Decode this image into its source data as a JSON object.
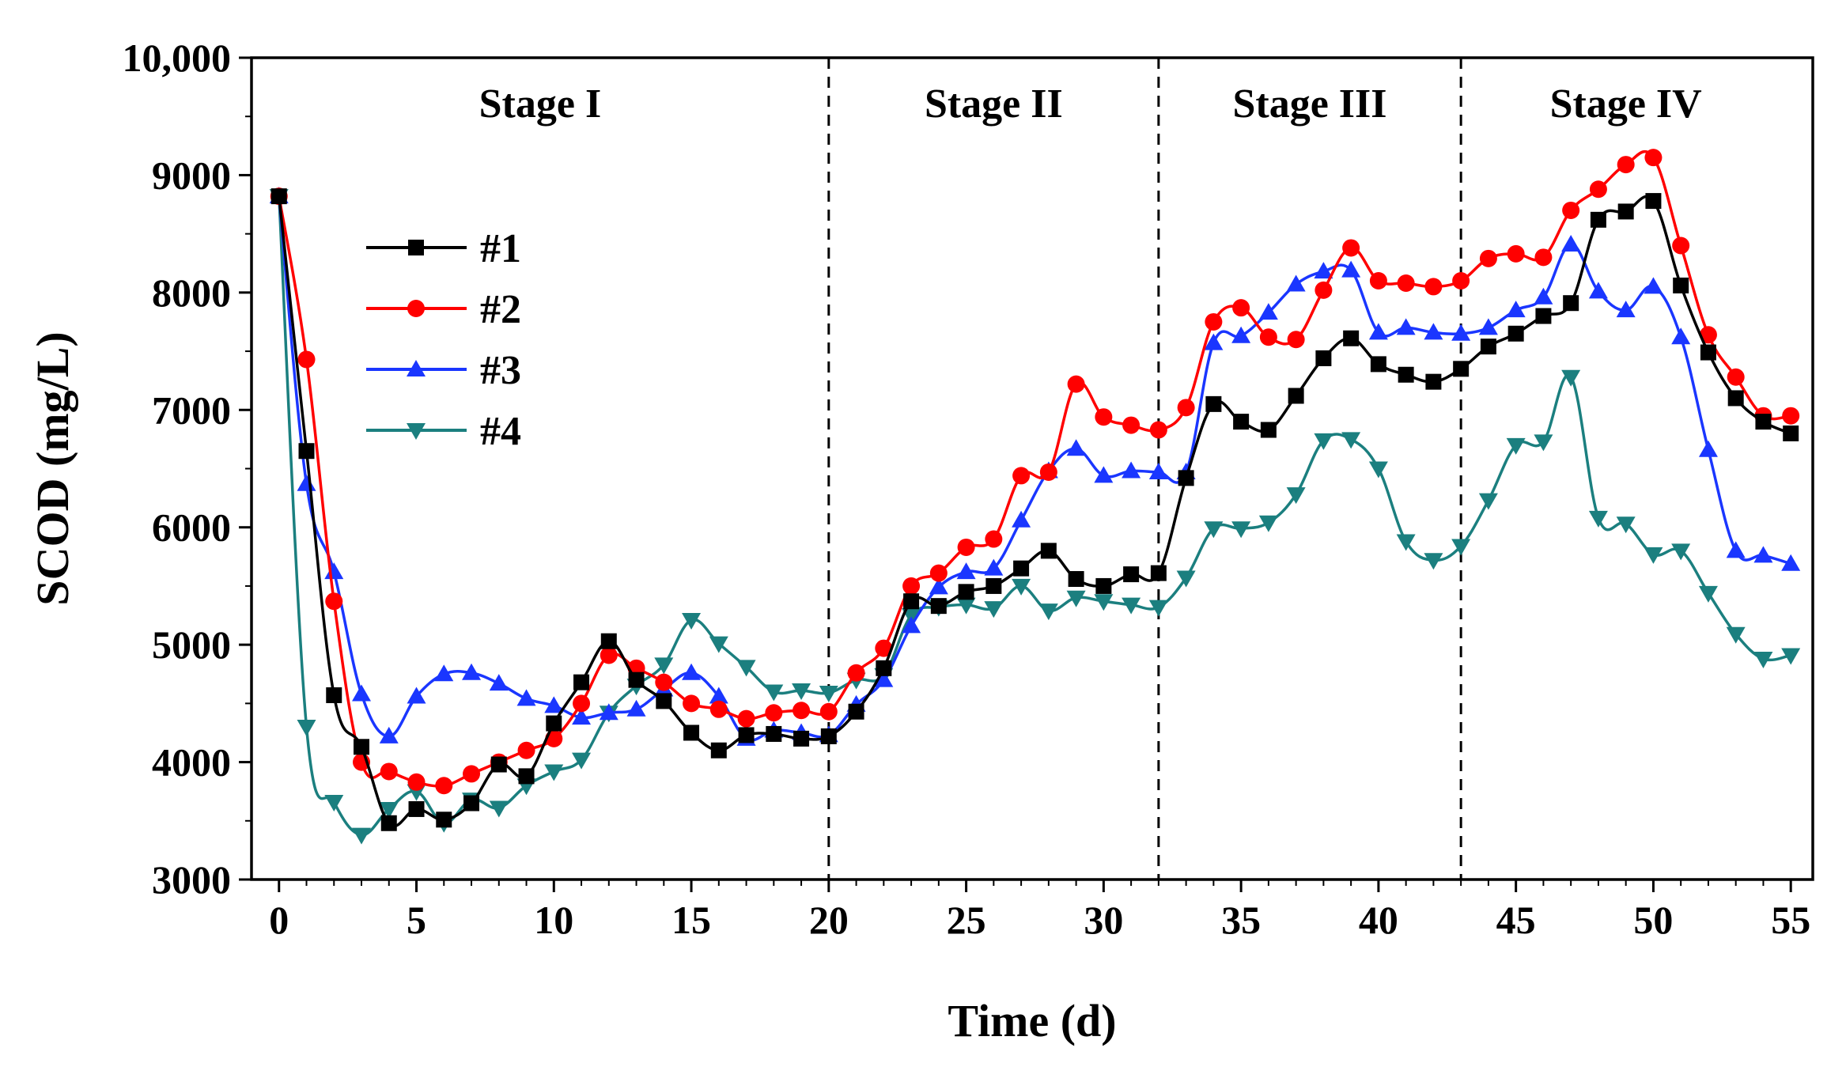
{
  "chart_data": {
    "type": "line",
    "title": "",
    "xlabel": "Time (d)",
    "ylabel": "SCOD (mg/L)",
    "xlim": [
      -1,
      55.8
    ],
    "ylim": [
      3000,
      10000
    ],
    "x_ticks": [
      0,
      5,
      10,
      15,
      20,
      25,
      30,
      35,
      40,
      45,
      50,
      55
    ],
    "y_ticks": [
      3000,
      4000,
      5000,
      6000,
      7000,
      8000,
      9000,
      10000
    ],
    "y_tick_labels": [
      "3000",
      "4000",
      "5000",
      "6000",
      "7000",
      "8000",
      "9000",
      "10,000"
    ],
    "grid": false,
    "legend_position": "upper-left",
    "stage_dividers": [
      20,
      32,
      43
    ],
    "stages": [
      {
        "label": "Stage I",
        "center_x": 9.5
      },
      {
        "label": "Stage II",
        "center_x": 26
      },
      {
        "label": "Stage III",
        "center_x": 37.5
      },
      {
        "label": "Stage IV",
        "center_x": 49
      }
    ],
    "x": [
      0,
      1,
      2,
      3,
      4,
      5,
      6,
      7,
      8,
      9,
      10,
      11,
      12,
      13,
      14,
      15,
      16,
      17,
      18,
      19,
      20,
      21,
      22,
      23,
      24,
      25,
      26,
      27,
      28,
      29,
      30,
      31,
      32,
      33,
      34,
      35,
      36,
      37,
      38,
      39,
      40,
      41,
      42,
      43,
      44,
      45,
      46,
      47,
      48,
      49,
      50,
      51,
      52,
      53,
      54,
      55
    ],
    "series": [
      {
        "name": "#1",
        "color": "#000000",
        "marker": "square",
        "values": [
          8820,
          6650,
          4570,
          4130,
          3480,
          3600,
          3510,
          3650,
          3980,
          3880,
          4330,
          4680,
          5030,
          4700,
          4520,
          4250,
          4100,
          4230,
          4240,
          4200,
          4220,
          4430,
          4800,
          5370,
          5330,
          5450,
          5500,
          5650,
          5800,
          5560,
          5500,
          5600,
          5610,
          6420,
          7050,
          6900,
          6830,
          7120,
          7440,
          7610,
          7390,
          7300,
          7240,
          7350,
          7540,
          7650,
          7800,
          7910,
          8620,
          8690,
          8780,
          8060,
          7490,
          7100,
          6900,
          6800
        ]
      },
      {
        "name": "#2",
        "color": "#ff0000",
        "marker": "circle",
        "values": [
          8820,
          7430,
          5370,
          4000,
          3920,
          3830,
          3800,
          3900,
          4000,
          4100,
          4200,
          4500,
          4910,
          4800,
          4680,
          4500,
          4450,
          4370,
          4420,
          4440,
          4430,
          4760,
          4970,
          5500,
          5610,
          5830,
          5900,
          6440,
          6470,
          7220,
          6940,
          6870,
          6830,
          7020,
          7750,
          7870,
          7620,
          7600,
          8020,
          8380,
          8100,
          8080,
          8050,
          8100,
          8290,
          8330,
          8300,
          8700,
          8880,
          9090,
          9150,
          8400,
          7640,
          7280,
          6950,
          6950
        ]
      },
      {
        "name": "#3",
        "color": "#1a36ff",
        "marker": "triangle-up",
        "values": [
          8820,
          6370,
          5620,
          4580,
          4220,
          4560,
          4750,
          4760,
          4670,
          4540,
          4480,
          4380,
          4420,
          4450,
          4620,
          4760,
          4560,
          4200,
          4270,
          4250,
          4230,
          4490,
          4700,
          5160,
          5490,
          5620,
          5650,
          6060,
          6480,
          6670,
          6440,
          6480,
          6470,
          6470,
          7570,
          7630,
          7830,
          8070,
          8180,
          8190,
          7660,
          7700,
          7660,
          7650,
          7700,
          7850,
          7960,
          8410,
          8010,
          7850,
          8050,
          7620,
          6660,
          5800,
          5760,
          5690
        ]
      },
      {
        "name": "#4",
        "color": "#1b7f7f",
        "marker": "triangle-down",
        "values": [
          8820,
          4300,
          3660,
          3380,
          3600,
          3750,
          3480,
          3680,
          3610,
          3800,
          3920,
          4020,
          4420,
          4650,
          4830,
          5210,
          5010,
          4810,
          4600,
          4610,
          4590,
          4700,
          4740,
          5250,
          5320,
          5340,
          5310,
          5500,
          5290,
          5400,
          5370,
          5340,
          5320,
          5570,
          5990,
          5990,
          6040,
          6280,
          6740,
          6750,
          6500,
          5880,
          5720,
          5840,
          6230,
          6700,
          6730,
          7280,
          6080,
          6030,
          5770,
          5800,
          5440,
          5090,
          4880,
          4910
        ]
      }
    ]
  }
}
